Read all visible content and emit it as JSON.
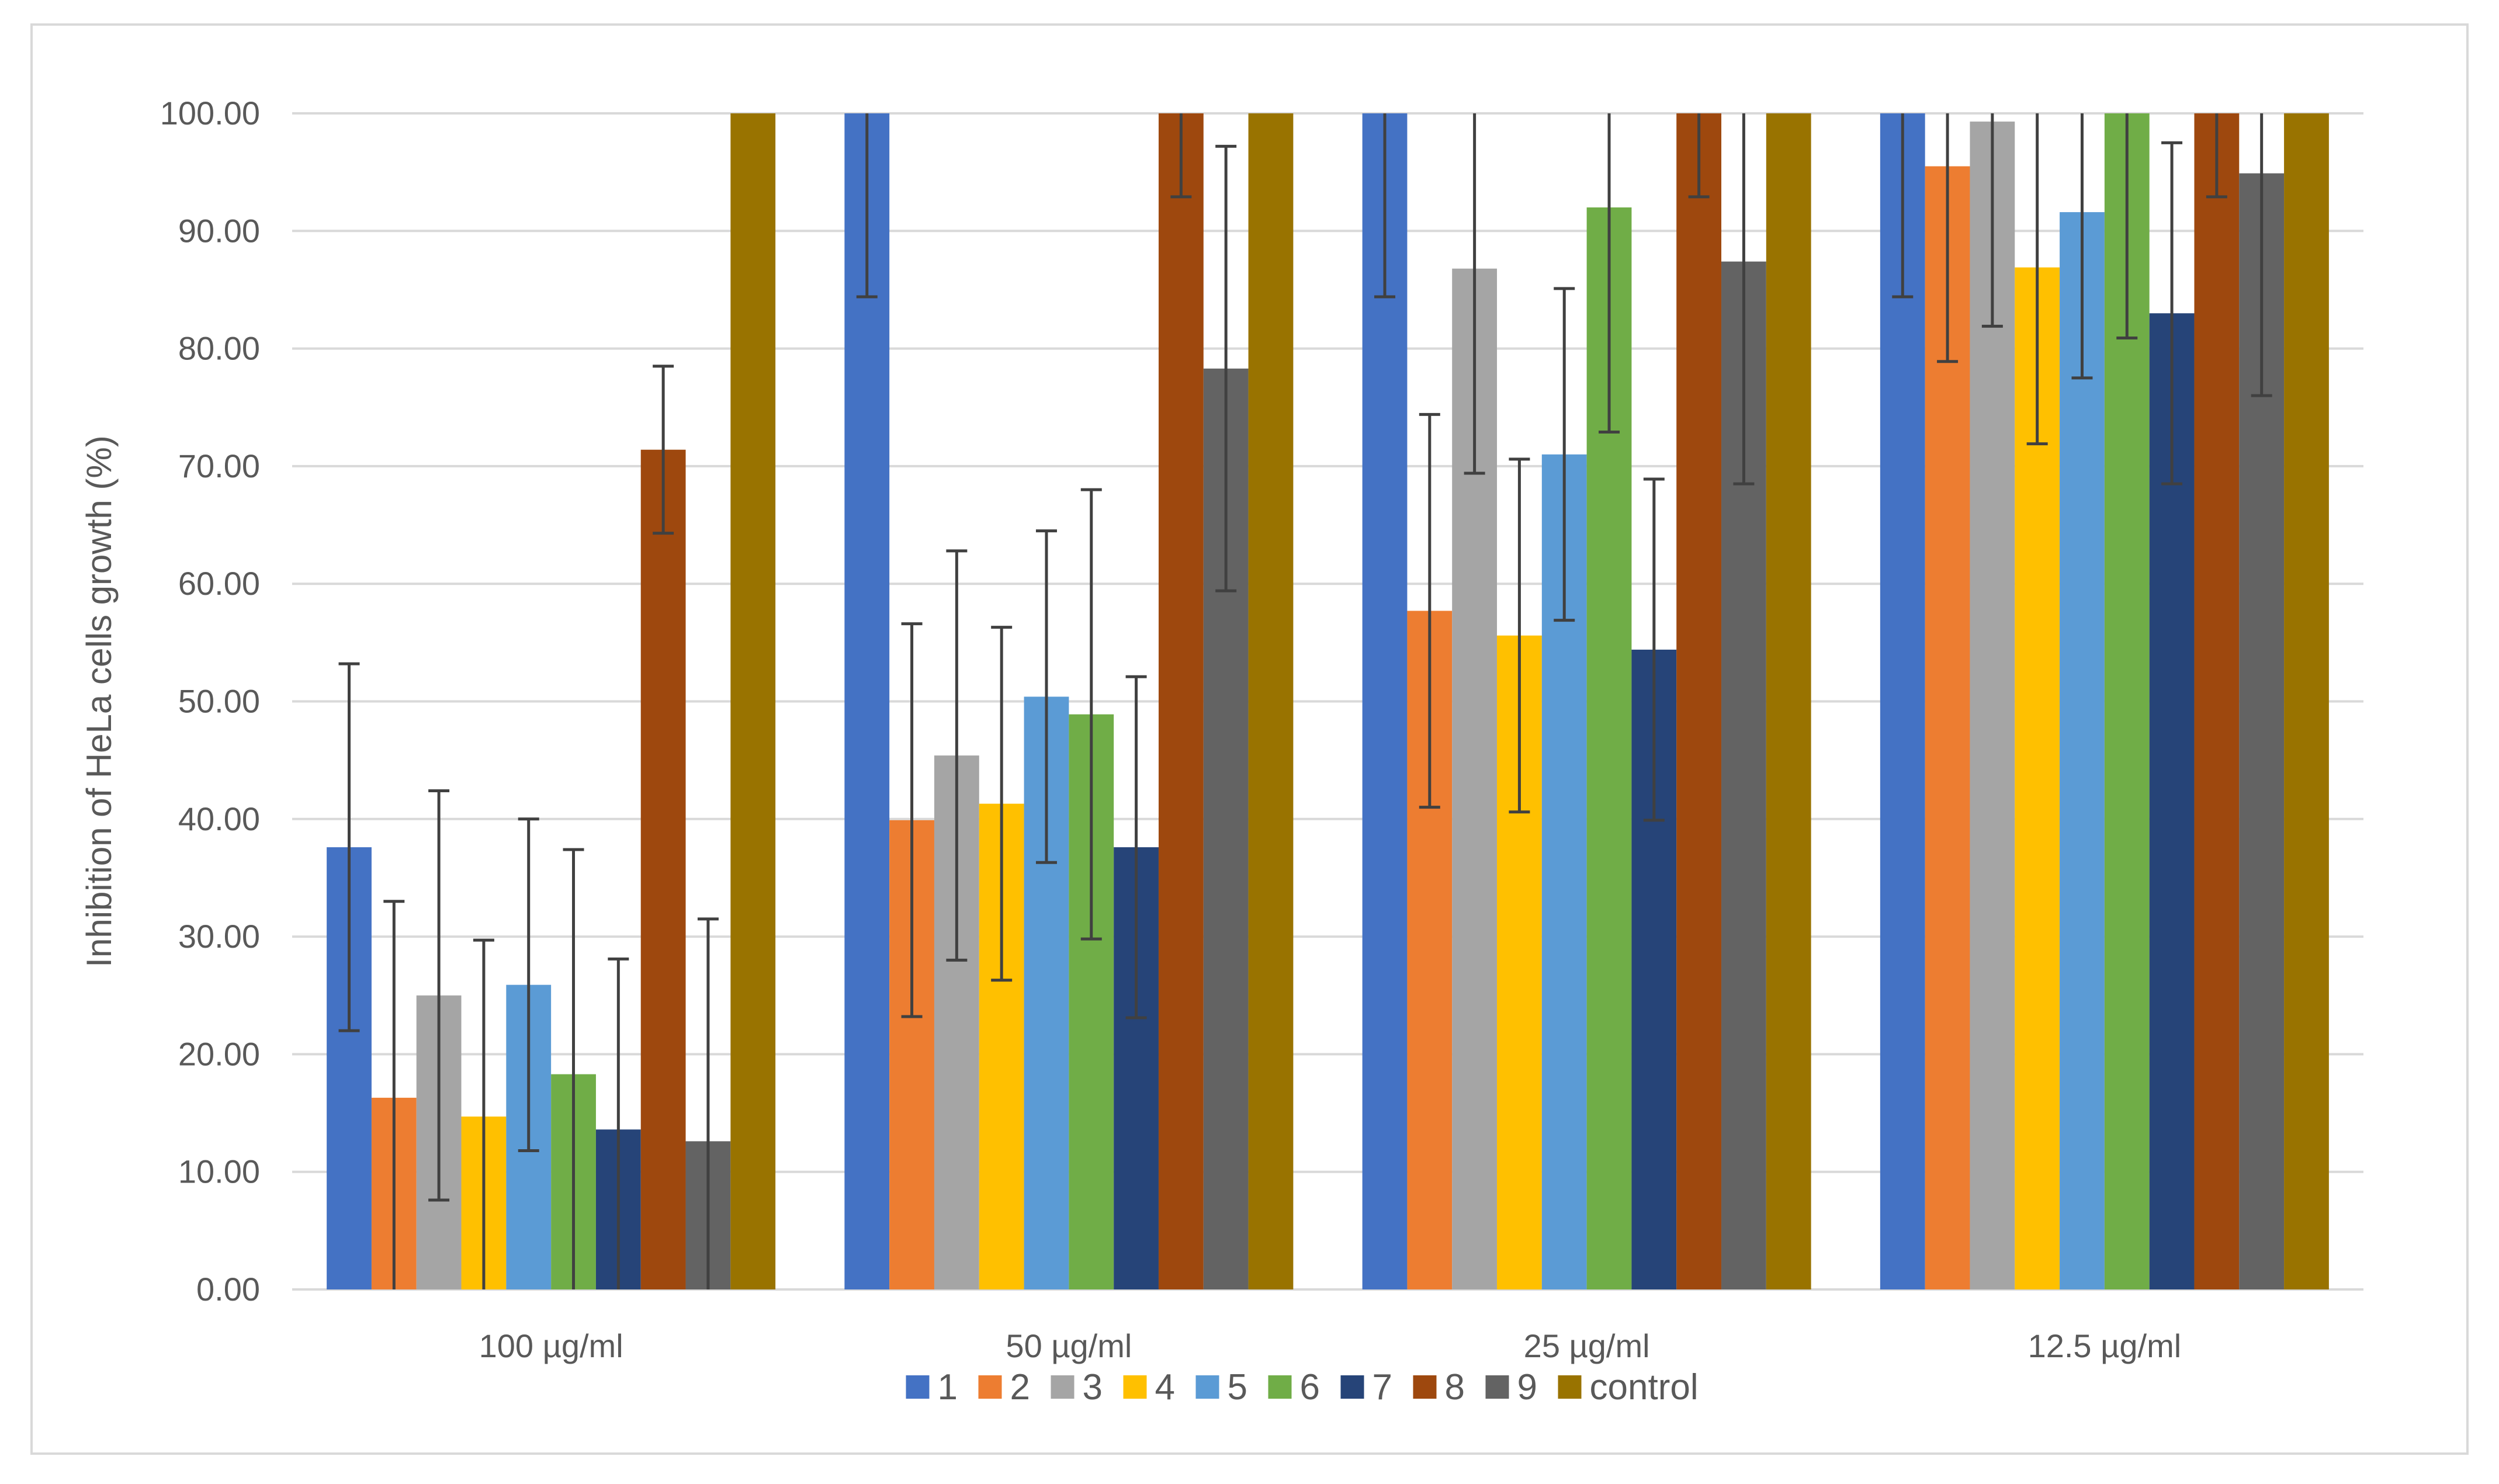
{
  "chart_data": {
    "type": "bar",
    "title": "",
    "xlabel": "",
    "ylabel": "Inhibition of HeLa cells growth (%)",
    "ylim": [
      0,
      100
    ],
    "yticks": [
      "0.00",
      "10.00",
      "20.00",
      "30.00",
      "40.00",
      "50.00",
      "60.00",
      "70.00",
      "80.00",
      "90.00",
      "100.00"
    ],
    "categories": [
      "100 µg/ml",
      "50 µg/ml",
      "25 µg/ml",
      "12.5 µg/ml"
    ],
    "grid": true,
    "legend_position": "bottom",
    "series": [
      {
        "name": "1",
        "color": "#4472C4",
        "values": [
          37.6,
          100.0,
          100.0,
          100.0
        ],
        "err_low": [
          22.0,
          84.4,
          84.4,
          84.4
        ],
        "err_high": [
          53.2,
          100.0,
          100.0,
          100.0
        ]
      },
      {
        "name": "2",
        "color": "#ED7D31",
        "values": [
          16.3,
          39.9,
          57.7,
          95.5
        ],
        "err_low": [
          0.0,
          23.2,
          41.0,
          78.9
        ],
        "err_high": [
          33.0,
          56.6,
          74.4,
          100.0
        ]
      },
      {
        "name": "3",
        "color": "#A5A5A5",
        "values": [
          25.0,
          45.4,
          86.8,
          99.3
        ],
        "err_low": [
          7.6,
          28.0,
          69.4,
          81.9
        ],
        "err_high": [
          42.4,
          62.8,
          100.0,
          100.0
        ]
      },
      {
        "name": "4",
        "color": "#FFC000",
        "values": [
          14.7,
          41.3,
          55.6,
          86.9
        ],
        "err_low": [
          0.0,
          26.3,
          40.6,
          71.9
        ],
        "err_high": [
          29.7,
          56.3,
          70.6,
          100.0
        ]
      },
      {
        "name": "5",
        "color": "#5B9BD5",
        "values": [
          25.9,
          50.4,
          71.0,
          91.6
        ],
        "err_low": [
          11.8,
          36.3,
          56.9,
          77.5
        ],
        "err_high": [
          40.0,
          64.5,
          85.1,
          100.0
        ]
      },
      {
        "name": "6",
        "color": "#70AD47",
        "values": [
          18.3,
          48.9,
          92.0,
          100.0
        ],
        "err_low": [
          0.0,
          29.8,
          72.9,
          80.9
        ],
        "err_high": [
          37.4,
          68.0,
          100.0,
          100.0
        ]
      },
      {
        "name": "7",
        "color": "#264478",
        "values": [
          13.6,
          37.6,
          54.4,
          83.0
        ],
        "err_low": [
          0.0,
          23.1,
          39.9,
          68.5
        ],
        "err_high": [
          28.1,
          52.1,
          68.9,
          97.5
        ]
      },
      {
        "name": "8",
        "color": "#9E480E",
        "values": [
          71.4,
          100.0,
          100.0,
          100.0
        ],
        "err_low": [
          64.3,
          92.9,
          92.9,
          92.9
        ],
        "err_high": [
          78.5,
          100.0,
          100.0,
          100.0
        ]
      },
      {
        "name": "9",
        "color": "#636363",
        "values": [
          12.6,
          78.3,
          87.4,
          94.9
        ],
        "err_low": [
          0.0,
          59.4,
          68.5,
          76.0
        ],
        "err_high": [
          31.5,
          97.2,
          100.0,
          100.0
        ]
      },
      {
        "name": "control",
        "color": "#997300",
        "values": [
          100.0,
          100.0,
          100.0,
          100.0
        ],
        "err_low": [
          100.0,
          100.0,
          100.0,
          100.0
        ],
        "err_high": [
          100.0,
          100.0,
          100.0,
          100.0
        ]
      }
    ]
  }
}
